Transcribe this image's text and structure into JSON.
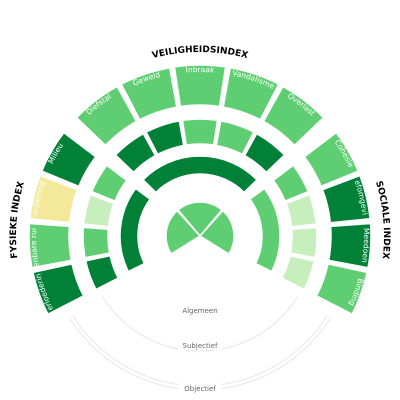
{
  "chart_data": {
    "type": "radial-segmented",
    "group_titles": [
      {
        "id": "fysiek",
        "text": "FYSIEKE INDEX"
      },
      {
        "id": "veiligheid",
        "text": "VEILIGHEIDSINDEX"
      },
      {
        "id": "sociaal",
        "text": "SOCIALE INDEX"
      }
    ],
    "ring_labels": {
      "algemeen": "Algemeen",
      "subjectief": "Subjectief",
      "objectief": "Objectief"
    },
    "colors": {
      "dark_green": "#008137",
      "mid_green": "#2fb14a",
      "light_green": "#5fce72",
      "pale_green": "#c7efbe",
      "yellow": "#f4e89a"
    },
    "outer_ring": [
      {
        "label": "Verloedering",
        "level": "dark_green"
      },
      {
        "label": "Openbare ruimte",
        "level": "light_green"
      },
      {
        "label": "Voorzieningen",
        "level": "yellow"
      },
      {
        "label": "Milieu",
        "level": "dark_green"
      },
      {
        "label": "Diefstal",
        "level": "light_green"
      },
      {
        "label": "Geweld",
        "level": "light_green"
      },
      {
        "label": "Inbraak",
        "level": "light_green"
      },
      {
        "label": "Vandalisme",
        "level": "light_green"
      },
      {
        "label": "Overlast",
        "level": "light_green"
      },
      {
        "label": "Cohesie",
        "level": "light_green"
      },
      {
        "label": "Leefomgeving",
        "level": "dark_green"
      },
      {
        "label": "Meedoen",
        "level": "dark_green"
      },
      {
        "label": "Binding",
        "level": "light_green"
      }
    ],
    "middle_ring": [
      {
        "level": "dark_green"
      },
      {
        "level": "light_green"
      },
      {
        "level": "pale_green"
      },
      {
        "level": "light_green"
      },
      {
        "level": "dark_green"
      },
      {
        "level": "dark_green"
      },
      {
        "level": "light_green"
      },
      {
        "level": "light_green"
      },
      {
        "level": "dark_green"
      },
      {
        "level": "light_green"
      },
      {
        "level": "pale_green"
      },
      {
        "level": "pale_green"
      },
      {
        "level": "pale_green"
      }
    ],
    "inner_ring": [
      {
        "group": "fysiek",
        "level": "dark_green"
      },
      {
        "group": "veiligheid",
        "level": "dark_green"
      },
      {
        "group": "sociaal",
        "level": "light_green"
      }
    ],
    "center": [
      {
        "group": "veiligheid",
        "level": "light_green"
      },
      {
        "group": "sociaal",
        "level": "light_green"
      },
      {
        "group": "fysiek",
        "level": "light_green"
      }
    ]
  }
}
